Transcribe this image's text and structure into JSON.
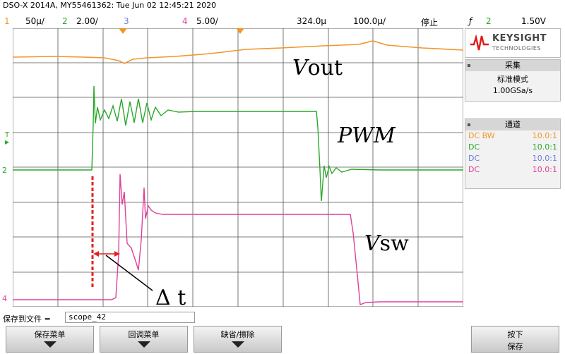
{
  "title": "DSO-X 2014A, MY55461362: Tue Jun 02 12:45:21 2020",
  "status_bar": {
    "ch1": {
      "num": "1",
      "scale": "50µ∕",
      "color": "#f0962a"
    },
    "ch2": {
      "num": "2",
      "scale": "2.00∕",
      "color": "#2aa82a"
    },
    "ch3": {
      "num": "3",
      "scale": "",
      "color": "#6b7fd7"
    },
    "ch4": {
      "num": "4",
      "scale": "5.00∕",
      "color": "#e0409a"
    },
    "timebase": "324.0µ",
    "delay": "100.0µ∕",
    "run_state": "停止",
    "trigger_icon": "ƒ",
    "trigger_channel": "2",
    "trigger_level": "1.50V"
  },
  "panel": {
    "brand": "KEYSIGHT",
    "brand_sub": "TECHNOLOGIES",
    "acquire": {
      "header": "采集",
      "mode": "标准模式",
      "rate": "1.00GSa/s"
    },
    "channels": {
      "header": "通道",
      "rows": [
        {
          "coupling": "DC BW",
          "probe": "10.0:1",
          "color": "#f0962a"
        },
        {
          "coupling": "DC",
          "probe": "10.0:1",
          "color": "#2aa82a"
        },
        {
          "coupling": "DC",
          "probe": "10.0:1",
          "color": "#6b7fd7"
        },
        {
          "coupling": "DC",
          "probe": "10.0:1",
          "color": "#e0409a"
        }
      ]
    }
  },
  "annotations": {
    "vout_v": "V",
    "vout_rest": "out",
    "pwm": "PWM",
    "vsw_v": "V",
    "vsw_rest": "sw",
    "delta": "Δ t"
  },
  "markers": {
    "trigger": "T",
    "ch2": "2",
    "ch4": "4"
  },
  "save_bar": {
    "label": "保存到文件 =",
    "filename": "scope_42"
  },
  "softkeys": [
    {
      "label": "保存菜单"
    },
    {
      "label": "回调菜单"
    },
    {
      "label": "缺省/擦除"
    }
  ],
  "press_key": {
    "line1": "按下",
    "line2": "保存"
  }
}
